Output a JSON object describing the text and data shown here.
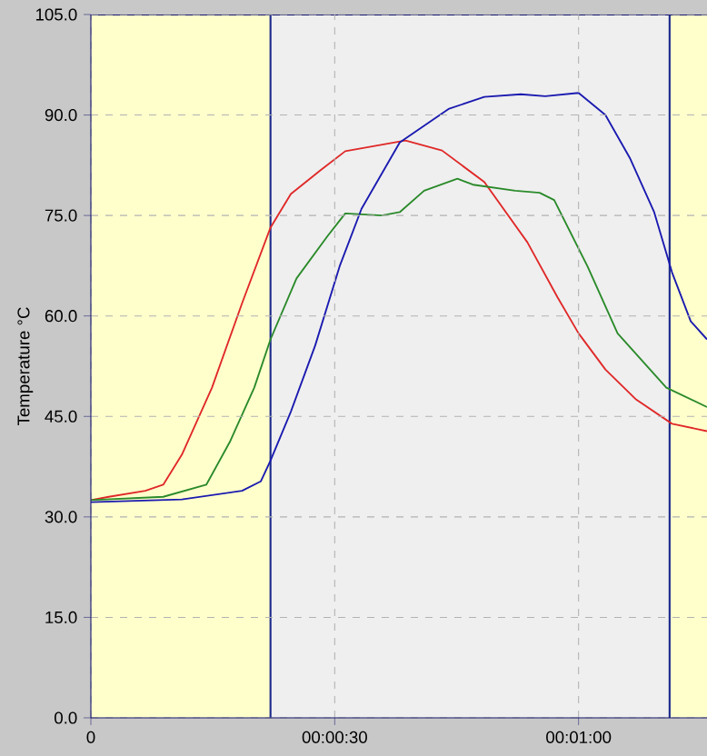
{
  "chart_data": {
    "type": "line",
    "ylabel": "Temperature °C",
    "xlim": [
      0,
      75.8
    ],
    "ylim": [
      0,
      105
    ],
    "xticks": [
      {
        "value": 0,
        "label": "0"
      },
      {
        "value": 30,
        "label": "00:00:30"
      },
      {
        "value": 60,
        "label": "00:01:00"
      }
    ],
    "yticks": [
      {
        "value": 0,
        "label": "0.0"
      },
      {
        "value": 15,
        "label": "15.0"
      },
      {
        "value": 30,
        "label": "30.0"
      },
      {
        "value": 45,
        "label": "45.0"
      },
      {
        "value": 60,
        "label": "60.0"
      },
      {
        "value": 75,
        "label": "75.0"
      },
      {
        "value": 90,
        "label": "90.0"
      },
      {
        "value": 105,
        "label": "105.0"
      }
    ],
    "grid": true,
    "line_style": "solid",
    "marker": "none",
    "bands": [
      {
        "axis": "x",
        "from": 0,
        "to": 22.1,
        "color": "#ffffcc"
      },
      {
        "axis": "x",
        "from": 22.1,
        "to": 71.2,
        "color": "#efefef"
      },
      {
        "axis": "x",
        "from": 71.2,
        "to": 75.8,
        "color": "#ffffcc"
      }
    ],
    "ref_lines": [
      {
        "axis": "x",
        "value": 22.1,
        "color": "#1c2a8c"
      },
      {
        "axis": "x",
        "value": 71.2,
        "color": "#1c2a8c"
      }
    ],
    "series": [
      {
        "color": "#e02828",
        "x": [
          0,
          2.2,
          6.7,
          8.9,
          11.2,
          14.9,
          18.6,
          22.1,
          24.6,
          28.3,
          31.3,
          38.7,
          43.2,
          48.4,
          53.7,
          57.4,
          60,
          63.3,
          67.1,
          71.5,
          75.8
        ],
        "values": [
          32.5,
          33.0,
          33.9,
          34.8,
          39.3,
          49.3,
          61.9,
          73.2,
          78.2,
          81.8,
          84.6,
          86.2,
          84.7,
          80.0,
          71.0,
          62.8,
          57.4,
          52.0,
          47.5,
          43.9,
          42.8
        ]
      },
      {
        "color": "#2a8a2a",
        "x": [
          0,
          8.9,
          14.2,
          17.1,
          20.1,
          22.1,
          25.3,
          29.1,
          31.3,
          35.8,
          38.0,
          41.0,
          45.1,
          47.0,
          52.2,
          55.2,
          57.0,
          61.1,
          64.8,
          70.8,
          75.8
        ],
        "values": [
          32.5,
          33.0,
          34.8,
          41.2,
          49.3,
          56.5,
          65.6,
          71.9,
          75.3,
          75.0,
          75.5,
          78.7,
          80.5,
          79.6,
          78.7,
          78.4,
          77.3,
          67.4,
          57.4,
          49.3,
          46.4
        ]
      },
      {
        "color": "#1a1ab0",
        "x": [
          0,
          11.2,
          18.6,
          20.9,
          22.1,
          24.6,
          27.6,
          30.6,
          33.3,
          38.0,
          44.0,
          48.4,
          52.9,
          55.9,
          60,
          63.3,
          66.3,
          69.3,
          71.5,
          73.8,
          75.8
        ],
        "values": [
          32.2,
          32.6,
          33.9,
          35.3,
          38.4,
          45.7,
          55.6,
          67.4,
          76.0,
          85.9,
          90.9,
          92.7,
          93.1,
          92.8,
          93.3,
          90.0,
          83.6,
          75.5,
          66.5,
          59.2,
          56.5
        ]
      }
    ]
  }
}
